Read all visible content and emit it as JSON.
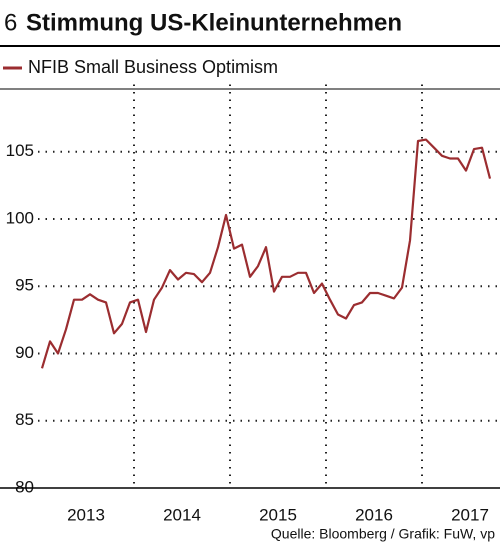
{
  "chart_data": {
    "type": "line",
    "number": "6",
    "title": "Stimmung US-Kleinunternehmen",
    "source": "Quelle: Bloomberg / Grafik: FuW, vp",
    "categories": [
      null,
      null,
      null,
      null,
      null,
      "2013",
      null,
      null,
      null,
      null,
      null,
      null,
      null,
      null,
      null,
      null,
      null,
      "2014",
      null,
      null,
      null,
      null,
      null,
      null,
      null,
      null,
      null,
      null,
      null,
      "2015",
      null,
      null,
      null,
      null,
      null,
      null,
      null,
      null,
      null,
      null,
      null,
      "2016",
      null,
      null,
      null,
      null,
      null,
      null,
      null,
      null,
      null,
      null,
      null,
      "2017",
      null,
      null,
      null
    ],
    "series": [
      {
        "name": "NFIB Small Business Optimism",
        "color": "#9b2d30",
        "values": [
          88.9,
          90.9,
          90.0,
          91.8,
          94.0,
          94.0,
          94.4,
          94.0,
          93.8,
          91.5,
          92.2,
          93.8,
          94.0,
          91.6,
          94.0,
          94.9,
          96.2,
          95.5,
          96.0,
          95.9,
          95.3,
          96.0,
          97.9,
          100.3,
          97.8,
          98.1,
          95.7,
          96.5,
          97.9,
          94.6,
          95.7,
          95.7,
          96.0,
          96.0,
          94.5,
          95.2,
          94.0,
          92.9,
          92.6,
          93.6,
          93.8,
          94.5,
          94.5,
          94.3,
          94.1,
          94.9,
          98.4,
          105.8,
          105.9,
          105.3,
          104.7,
          104.5,
          104.5,
          103.6,
          105.2,
          105.3,
          103.0
        ]
      }
    ],
    "ylim": [
      80,
      110
    ],
    "yticks": [
      80,
      85,
      90,
      95,
      100,
      105
    ],
    "grid": true
  }
}
